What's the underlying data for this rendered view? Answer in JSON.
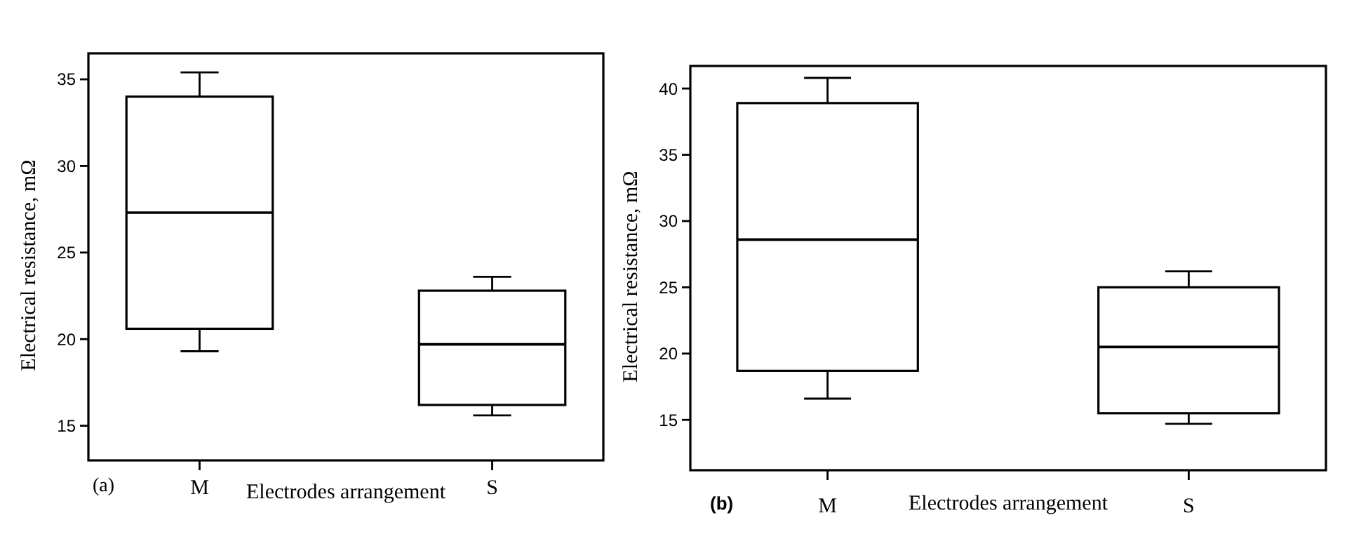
{
  "chart_data": [
    {
      "type": "box",
      "xlabel": "Electrodes arrangement",
      "ylabel": "Electrical resistance, mΩ",
      "categories": [
        "M",
        "S"
      ],
      "ylim": [
        13,
        36.5
      ],
      "yticks": [
        15,
        20,
        25,
        30,
        35
      ],
      "annotations": [
        "(a)"
      ],
      "boxes": [
        {
          "low": 19.3,
          "q1": 20.6,
          "median": 27.3,
          "q3": 34.0,
          "high": 35.4
        },
        {
          "low": 15.6,
          "q1": 16.2,
          "median": 19.7,
          "q3": 22.8,
          "high": 23.6
        }
      ]
    },
    {
      "type": "box",
      "xlabel": "Electrodes arrangement",
      "ylabel": "Electrical resistance, mΩ",
      "categories": [
        "M",
        "S"
      ],
      "ylim": [
        11.2,
        41.7
      ],
      "yticks": [
        15,
        20,
        25,
        30,
        35,
        40
      ],
      "annotations": [
        "(b)"
      ],
      "boxes": [
        {
          "low": 16.6,
          "q1": 18.7,
          "median": 28.6,
          "q3": 38.9,
          "high": 40.8
        },
        {
          "low": 14.7,
          "q1": 15.5,
          "median": 20.5,
          "q3": 25.0,
          "high": 26.2
        }
      ]
    }
  ]
}
